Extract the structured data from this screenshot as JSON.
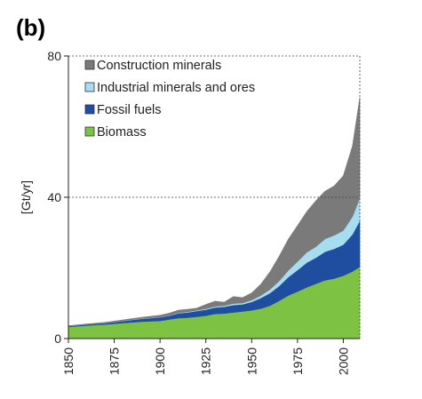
{
  "panel_label": "(b)",
  "chart_data": {
    "type": "area",
    "stacked": true,
    "ylabel": "[Gt/yr]",
    "xlim": [
      1850,
      2009
    ],
    "ylim": [
      0,
      80
    ],
    "y_ticks": [
      0,
      40,
      80
    ],
    "x_ticks": [
      1850,
      1875,
      1900,
      1925,
      1950,
      1975,
      2000
    ],
    "gridlines": [
      40,
      80
    ],
    "legend_position": "top-left",
    "x": [
      1850,
      1860,
      1870,
      1880,
      1890,
      1900,
      1905,
      1910,
      1915,
      1920,
      1925,
      1930,
      1935,
      1940,
      1945,
      1950,
      1955,
      1960,
      1965,
      1970,
      1975,
      1980,
      1985,
      1990,
      1995,
      2000,
      2005,
      2009
    ],
    "series": [
      {
        "name": "Biomass",
        "color": "#7dc242",
        "values": [
          3.3,
          3.7,
          4.0,
          4.4,
          4.8,
          5.0,
          5.4,
          5.8,
          5.9,
          6.2,
          6.5,
          7.0,
          7.1,
          7.4,
          7.7,
          8.0,
          8.5,
          9.3,
          10.7,
          12.2,
          13.3,
          14.5,
          15.5,
          16.5,
          17.0,
          17.8,
          19.0,
          20.3
        ]
      },
      {
        "name": "Fossil fuels",
        "color": "#1f4ea1",
        "values": [
          0.2,
          0.3,
          0.4,
          0.6,
          0.8,
          1.0,
          1.1,
          1.4,
          1.5,
          1.6,
          1.7,
          1.8,
          1.9,
          2.1,
          2.0,
          2.4,
          3.0,
          3.6,
          4.2,
          5.2,
          6.1,
          7.0,
          7.4,
          8.1,
          8.4,
          8.8,
          10.5,
          13.1
        ]
      },
      {
        "name": "Industrial minerals and ores",
        "color": "#a6ddf0",
        "values": [
          0.05,
          0.05,
          0.1,
          0.1,
          0.1,
          0.1,
          0.1,
          0.15,
          0.2,
          0.2,
          0.25,
          0.3,
          0.3,
          0.4,
          0.4,
          0.5,
          0.7,
          1.0,
          1.4,
          1.9,
          2.4,
          2.9,
          3.1,
          3.6,
          3.8,
          4.0,
          5.0,
          6.4
        ]
      },
      {
        "name": "Construction minerals",
        "color": "#7a7a7a",
        "values": [
          0.1,
          0.1,
          0.1,
          0.2,
          0.3,
          0.5,
          0.6,
          0.7,
          0.7,
          0.6,
          1.2,
          1.5,
          1.0,
          2.0,
          1.5,
          2.0,
          3.2,
          5.0,
          7.0,
          8.8,
          10.2,
          11.5,
          13.0,
          13.5,
          14.0,
          15.5,
          20.0,
          28.5
        ]
      }
    ],
    "legend_order": [
      "Construction minerals",
      "Industrial minerals and ores",
      "Fossil fuels",
      "Biomass"
    ]
  }
}
